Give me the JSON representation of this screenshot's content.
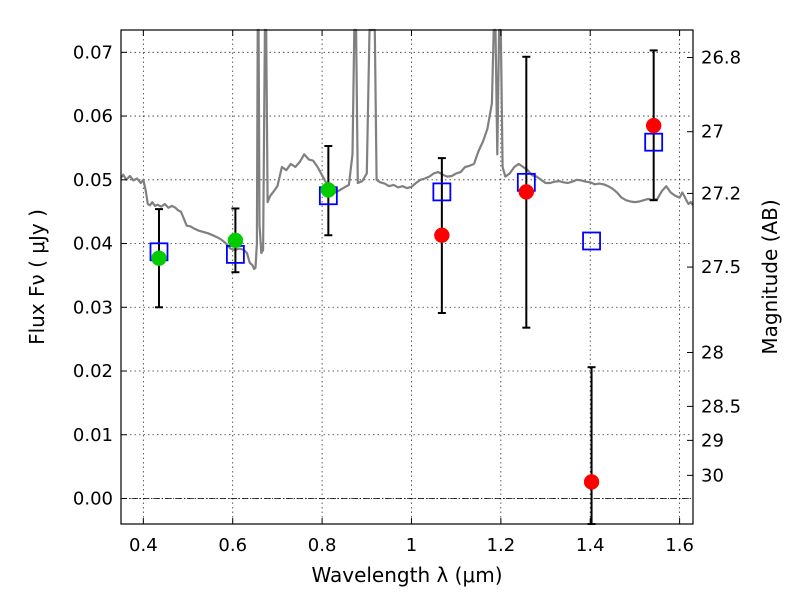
{
  "chart_data": {
    "type": "scatter",
    "xlabel": "Wavelength  λ (μm)",
    "ylabel": "Flux  Fν  ( μJy )",
    "y2label": "Magnitude (AB)",
    "xlim": [
      0.35,
      1.63
    ],
    "ylim": [
      -0.004,
      0.0735
    ],
    "grid": true,
    "x_ticks": [
      0.4,
      0.6,
      0.8,
      1.0,
      1.2,
      1.4,
      1.6
    ],
    "x_tick_labels": [
      "0.4",
      "0.6",
      "0.8",
      "1",
      "1.2",
      "1.4",
      "1.6"
    ],
    "y_ticks": [
      0.0,
      0.01,
      0.02,
      0.03,
      0.04,
      0.05,
      0.06,
      0.07
    ],
    "y_tick_labels": [
      "0.00",
      "0.01",
      "0.02",
      "0.03",
      "0.04",
      "0.05",
      "0.06",
      "0.07"
    ],
    "mag_ticks": [
      26.8,
      27,
      27.2,
      27.5,
      28,
      28.5,
      29,
      30
    ],
    "mag_tick_labels": [
      "26.8",
      "27",
      "27.2",
      "27.5",
      "28",
      "28.5",
      "29",
      "30"
    ],
    "series": [
      {
        "marker": "circle",
        "color": "#00cc00",
        "error_color": "#000000",
        "points": [
          {
            "x": 0.435,
            "y": 0.0377,
            "err_low": 0.03,
            "err_high": 0.0454
          },
          {
            "x": 0.606,
            "y": 0.0405,
            "err_low": 0.0355,
            "err_high": 0.0455
          },
          {
            "x": 0.814,
            "y": 0.0484,
            "err_low": 0.0413,
            "err_high": 0.0553
          }
        ]
      },
      {
        "marker": "circle",
        "color": "#ff0000",
        "error_color": "#000000",
        "points": [
          {
            "x": 1.068,
            "y": 0.0413,
            "err_low": 0.0291,
            "err_high": 0.0534
          },
          {
            "x": 1.257,
            "y": 0.0481,
            "err_low": 0.0268,
            "err_high": 0.0693
          },
          {
            "x": 1.403,
            "y": 0.0026,
            "err_low": -0.0045,
            "err_high": 0.0206
          },
          {
            "x": 1.542,
            "y": 0.0585,
            "err_low": 0.0468,
            "err_high": 0.0703
          }
        ]
      },
      {
        "marker": "open-square",
        "color": "#0000ff",
        "points": [
          {
            "x": 0.435,
            "y": 0.0387
          },
          {
            "x": 0.606,
            "y": 0.0383
          },
          {
            "x": 0.814,
            "y": 0.0475
          },
          {
            "x": 1.068,
            "y": 0.0481
          },
          {
            "x": 1.257,
            "y": 0.0496
          },
          {
            "x": 1.403,
            "y": 0.0404
          },
          {
            "x": 1.542,
            "y": 0.0559
          }
        ]
      },
      {
        "type": "line",
        "color": "#808080",
        "points": [
          [
            0.35,
            0.0503
          ],
          [
            0.355,
            0.0508
          ],
          [
            0.362,
            0.05
          ],
          [
            0.37,
            0.0506
          ],
          [
            0.378,
            0.0499
          ],
          [
            0.386,
            0.0502
          ],
          [
            0.394,
            0.0495
          ],
          [
            0.4,
            0.05
          ],
          [
            0.405,
            0.0484
          ],
          [
            0.41,
            0.0462
          ],
          [
            0.415,
            0.046
          ],
          [
            0.42,
            0.0465
          ],
          [
            0.426,
            0.0459
          ],
          [
            0.432,
            0.0461
          ],
          [
            0.44,
            0.0458
          ],
          [
            0.448,
            0.0462
          ],
          [
            0.456,
            0.0456
          ],
          [
            0.464,
            0.0459
          ],
          [
            0.472,
            0.0456
          ],
          [
            0.478,
            0.0452
          ],
          [
            0.484,
            0.045
          ],
          [
            0.49,
            0.044
          ],
          [
            0.497,
            0.0428
          ],
          [
            0.505,
            0.0427
          ],
          [
            0.515,
            0.0423
          ],
          [
            0.525,
            0.042
          ],
          [
            0.535,
            0.0418
          ],
          [
            0.545,
            0.0416
          ],
          [
            0.555,
            0.0413
          ],
          [
            0.565,
            0.041
          ],
          [
            0.575,
            0.0406
          ],
          [
            0.585,
            0.04
          ],
          [
            0.595,
            0.0392
          ],
          [
            0.605,
            0.039
          ],
          [
            0.615,
            0.0392
          ],
          [
            0.625,
            0.039
          ],
          [
            0.632,
            0.0385
          ],
          [
            0.638,
            0.037
          ],
          [
            0.644,
            0.0366
          ],
          [
            0.648,
            0.036
          ],
          [
            0.651,
            0.0362
          ],
          [
            0.654,
            0.04
          ],
          [
            0.656,
            0.075
          ],
          [
            0.658,
            0.075
          ],
          [
            0.66,
            0.043
          ],
          [
            0.664,
            0.0385
          ],
          [
            0.668,
            0.039
          ],
          [
            0.672,
            0.075
          ],
          [
            0.675,
            0.075
          ],
          [
            0.678,
            0.0465
          ],
          [
            0.684,
            0.0475
          ],
          [
            0.69,
            0.048
          ],
          [
            0.7,
            0.049
          ],
          [
            0.71,
            0.052
          ],
          [
            0.72,
            0.0515
          ],
          [
            0.73,
            0.0525
          ],
          [
            0.74,
            0.052
          ],
          [
            0.75,
            0.0528
          ],
          [
            0.76,
            0.054
          ],
          [
            0.77,
            0.0532
          ],
          [
            0.78,
            0.053
          ],
          [
            0.79,
            0.052
          ],
          [
            0.8,
            0.0507
          ],
          [
            0.81,
            0.0494
          ],
          [
            0.82,
            0.0485
          ],
          [
            0.83,
            0.048
          ],
          [
            0.84,
            0.0484
          ],
          [
            0.85,
            0.0488
          ],
          [
            0.86,
            0.0492
          ],
          [
            0.868,
            0.054
          ],
          [
            0.872,
            0.075
          ],
          [
            0.876,
            0.075
          ],
          [
            0.88,
            0.0495
          ],
          [
            0.89,
            0.0498
          ],
          [
            0.9,
            0.051
          ],
          [
            0.906,
            0.075
          ],
          [
            0.91,
            0.075
          ],
          [
            0.914,
            0.075
          ],
          [
            0.918,
            0.075
          ],
          [
            0.922,
            0.05
          ],
          [
            0.93,
            0.0496
          ],
          [
            0.94,
            0.0494
          ],
          [
            0.95,
            0.049
          ],
          [
            0.96,
            0.0492
          ],
          [
            0.97,
            0.0488
          ],
          [
            0.98,
            0.049
          ],
          [
            0.99,
            0.0487
          ],
          [
            1.0,
            0.0489
          ],
          [
            1.01,
            0.0495
          ],
          [
            1.02,
            0.05
          ],
          [
            1.03,
            0.0502
          ],
          [
            1.04,
            0.0505
          ],
          [
            1.05,
            0.051
          ],
          [
            1.06,
            0.0512
          ],
          [
            1.07,
            0.0508
          ],
          [
            1.08,
            0.0505
          ],
          [
            1.09,
            0.0506
          ],
          [
            1.1,
            0.051
          ],
          [
            1.11,
            0.0512
          ],
          [
            1.12,
            0.052
          ],
          [
            1.13,
            0.0522
          ],
          [
            1.14,
            0.0525
          ],
          [
            1.15,
            0.0545
          ],
          [
            1.16,
            0.056
          ],
          [
            1.17,
            0.058
          ],
          [
            1.18,
            0.062
          ],
          [
            1.184,
            0.075
          ],
          [
            1.188,
            0.075
          ],
          [
            1.192,
            0.054
          ],
          [
            1.196,
            0.075
          ],
          [
            1.2,
            0.075
          ],
          [
            1.204,
            0.052
          ],
          [
            1.21,
            0.0505
          ],
          [
            1.22,
            0.051
          ],
          [
            1.23,
            0.052
          ],
          [
            1.24,
            0.0525
          ],
          [
            1.25,
            0.052
          ],
          [
            1.26,
            0.0515
          ],
          [
            1.27,
            0.0507
          ],
          [
            1.28,
            0.0505
          ],
          [
            1.29,
            0.05
          ],
          [
            1.3,
            0.0495
          ],
          [
            1.31,
            0.0495
          ],
          [
            1.32,
            0.0497
          ],
          [
            1.33,
            0.0498
          ],
          [
            1.34,
            0.0496
          ],
          [
            1.35,
            0.0495
          ],
          [
            1.36,
            0.0497
          ],
          [
            1.37,
            0.05
          ],
          [
            1.38,
            0.0499
          ],
          [
            1.39,
            0.0497
          ],
          [
            1.4,
            0.0496
          ],
          [
            1.41,
            0.0493
          ],
          [
            1.42,
            0.0494
          ],
          [
            1.43,
            0.0493
          ],
          [
            1.44,
            0.049
          ],
          [
            1.45,
            0.0486
          ],
          [
            1.46,
            0.048
          ],
          [
            1.47,
            0.0472
          ],
          [
            1.48,
            0.0468
          ],
          [
            1.49,
            0.0466
          ],
          [
            1.5,
            0.0465
          ],
          [
            1.51,
            0.0466
          ],
          [
            1.52,
            0.0468
          ],
          [
            1.53,
            0.047
          ],
          [
            1.54,
            0.0468
          ],
          [
            1.55,
            0.047
          ],
          [
            1.56,
            0.0482
          ],
          [
            1.57,
            0.049
          ],
          [
            1.58,
            0.048
          ],
          [
            1.59,
            0.0475
          ],
          [
            1.6,
            0.0472
          ],
          [
            1.606,
            0.048
          ],
          [
            1.61,
            0.0475
          ],
          [
            1.615,
            0.0468
          ],
          [
            1.62,
            0.0462
          ],
          [
            1.625,
            0.0465
          ],
          [
            1.63,
            0.046
          ]
        ]
      }
    ]
  }
}
